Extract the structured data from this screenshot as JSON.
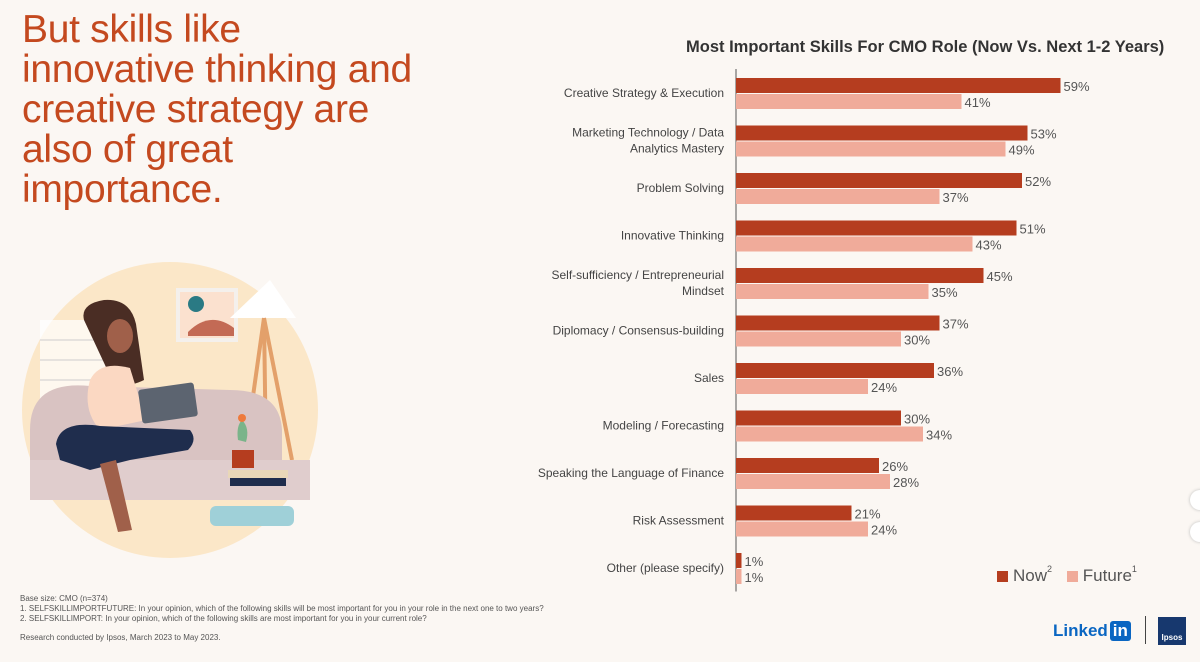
{
  "headline": "But skills like innovative thinking and creative strategy are also of great importance.",
  "chart_data": {
    "type": "bar",
    "orientation": "horizontal",
    "title": "Most Important Skills For CMO Role (Now Vs. Next 1-2 Years)",
    "categories": [
      [
        "Creative Strategy & Execution"
      ],
      [
        "Marketing Technology / Data",
        "Analytics Mastery"
      ],
      [
        "Problem Solving"
      ],
      [
        "Innovative Thinking"
      ],
      [
        "Self-sufficiency / Entrepreneurial",
        "Mindset"
      ],
      [
        "Diplomacy / Consensus-building"
      ],
      [
        "Sales"
      ],
      [
        "Modeling / Forecasting"
      ],
      [
        "Speaking the Language of Finance"
      ],
      [
        "Risk Assessment"
      ],
      [
        "Other (please specify)"
      ]
    ],
    "series": [
      {
        "name": "Now",
        "sup": "2",
        "color": "#b53d1f",
        "values": [
          59,
          53,
          52,
          51,
          45,
          37,
          36,
          30,
          26,
          21,
          1
        ]
      },
      {
        "name": "Future",
        "sup": "1",
        "color": "#f0ab9a",
        "values": [
          41,
          49,
          37,
          43,
          35,
          30,
          24,
          34,
          28,
          24,
          1
        ]
      }
    ],
    "value_suffix": "%",
    "xlim": [
      0,
      60
    ],
    "legend_position": "bottom-right"
  },
  "legend": {
    "now_label": "Now",
    "now_sup": "2",
    "future_label": "Future",
    "future_sup": "1",
    "now_color": "#b53d1f",
    "future_color": "#f0ab9a"
  },
  "footnotes": {
    "base": "Base size: CMO (n=374)",
    "note1": "1. SELFSKILLIMPORTFUTURE: In your opinion, which of the following skills will be most important for you in your role in the next one to two years?",
    "note2": "2. SELFSKILLIMPORT: In your opinion, which of the following skills are most important for you in your current role?",
    "research": "Research conducted by Ipsos, March 2023 to May 2023."
  },
  "logos": {
    "linkedin_text": "Linked",
    "linkedin_box": "in",
    "ipsos": "Ipsos"
  }
}
